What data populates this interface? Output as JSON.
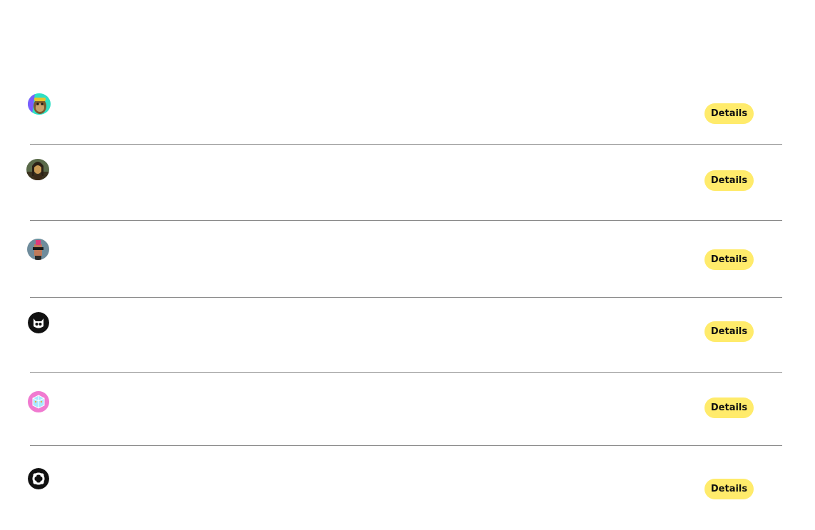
{
  "collections": [
    {
      "avatar_icon": "ape-avatar-icon",
      "button_label": "Details"
    },
    {
      "avatar_icon": "mona-lisa-avatar-icon",
      "button_label": "Details"
    },
    {
      "avatar_icon": "punk-avatar-icon",
      "button_label": "Details"
    },
    {
      "avatar_icon": "creature-logo-icon",
      "button_label": "Details"
    },
    {
      "avatar_icon": "pink-cube-avatar-icon",
      "button_label": "Details"
    },
    {
      "avatar_icon": "ring-logo-icon",
      "button_label": "Details"
    }
  ],
  "colors": {
    "button_background": "#ffeb6b",
    "button_text": "#111111",
    "divider": "#8a8a8a",
    "page_background": "#ffffff"
  }
}
